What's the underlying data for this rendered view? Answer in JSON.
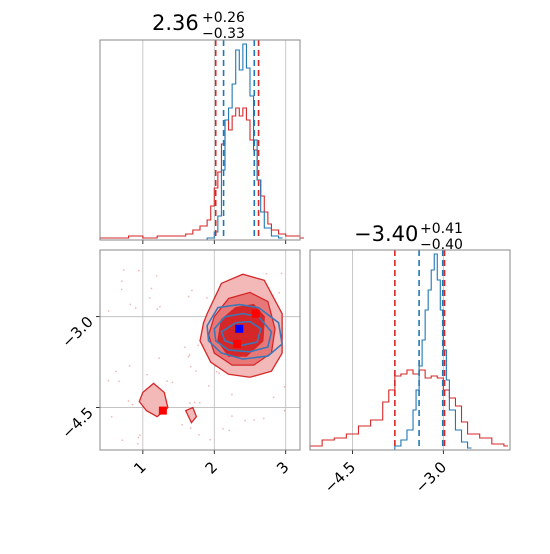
{
  "colors": {
    "sample_a": "#d62728",
    "sample_b": "#1f77b4",
    "marker_a": "#ff0000",
    "marker_b": "#0000ff",
    "axis": "#888888",
    "grid": "#bbbbbb",
    "text": "#000000"
  },
  "chart_data": [
    {
      "panel": "marginal-param-1",
      "type": "histogram",
      "title_main": "2.36",
      "title_sup": "+0.26",
      "title_sub": "−0.33",
      "xlim": [
        0.4,
        3.2
      ],
      "ticks": [
        1,
        2,
        3
      ],
      "show_tick_labels": false,
      "grid": true,
      "quantiles": [
        {
          "series": "red",
          "values": [
            2.02,
            2.62
          ]
        },
        {
          "series": "blue",
          "values": [
            2.13,
            2.56
          ]
        }
      ],
      "series": [
        {
          "color": "red",
          "x": [
            0.4,
            0.6,
            0.8,
            1.0,
            1.2,
            1.4,
            1.6,
            1.7,
            1.8,
            1.9,
            1.95,
            2.0,
            2.05,
            2.1,
            2.15,
            2.2,
            2.25,
            2.3,
            2.35,
            2.4,
            2.45,
            2.5,
            2.55,
            2.6,
            2.65,
            2.7,
            2.75,
            2.8,
            2.9,
            3.0,
            3.2
          ],
          "y": [
            0.01,
            0.01,
            0.02,
            0.01,
            0.02,
            0.02,
            0.03,
            0.05,
            0.07,
            0.1,
            0.17,
            0.26,
            0.34,
            0.48,
            0.6,
            0.55,
            0.62,
            0.66,
            0.62,
            0.66,
            0.6,
            0.5,
            0.45,
            0.3,
            0.22,
            0.14,
            0.08,
            0.05,
            0.03,
            0.02,
            0.01
          ]
        },
        {
          "color": "blue",
          "x": [
            1.9,
            2.0,
            2.05,
            2.1,
            2.15,
            2.2,
            2.25,
            2.3,
            2.35,
            2.4,
            2.45,
            2.5,
            2.55,
            2.6,
            2.65,
            2.7,
            2.8,
            2.9
          ],
          "y": [
            0.01,
            0.04,
            0.12,
            0.35,
            0.6,
            0.66,
            0.78,
            0.95,
            0.85,
            0.98,
            0.86,
            0.72,
            0.5,
            0.3,
            0.14,
            0.06,
            0.02,
            0.01
          ]
        }
      ]
    },
    {
      "panel": "joint-param-1-param-2",
      "type": "contour",
      "xlim": [
        0.4,
        3.2
      ],
      "ylim": [
        -5.2,
        -1.9
      ],
      "xticks": [
        "1",
        "2",
        "3"
      ],
      "yticks": [
        "−3.0",
        "−4.5"
      ],
      "ytick_values": [
        -3.0,
        -4.5
      ],
      "grid": true,
      "red_contours": [
        {
          "level": "outer",
          "x": [
            1.9,
            2.1,
            2.4,
            2.7,
            2.95,
            2.95,
            2.8,
            2.5,
            2.2,
            1.95,
            1.8,
            1.85,
            1.9
          ],
          "y": [
            -2.95,
            -2.45,
            -2.3,
            -2.4,
            -2.95,
            -3.6,
            -3.9,
            -4.0,
            -3.95,
            -3.75,
            -3.4,
            -3.1,
            -2.95
          ]
        },
        {
          "level": "middle",
          "x": [
            2.0,
            2.2,
            2.5,
            2.75,
            2.85,
            2.8,
            2.55,
            2.25,
            2.0,
            1.92,
            2.0
          ],
          "y": [
            -3.0,
            -2.7,
            -2.6,
            -2.75,
            -3.2,
            -3.6,
            -3.8,
            -3.8,
            -3.6,
            -3.3,
            -3.0
          ]
        },
        {
          "level": "inner",
          "x": [
            2.1,
            2.3,
            2.55,
            2.7,
            2.68,
            2.45,
            2.2,
            2.05,
            2.1
          ],
          "y": [
            -3.05,
            -2.85,
            -2.8,
            -3.0,
            -3.4,
            -3.65,
            -3.65,
            -3.4,
            -3.05
          ]
        },
        {
          "level": "island",
          "x": [
            1.0,
            1.15,
            1.3,
            1.35,
            1.2,
            1.05,
            0.95,
            1.0
          ],
          "y": [
            -4.25,
            -4.1,
            -4.25,
            -4.5,
            -4.65,
            -4.55,
            -4.4,
            -4.25
          ]
        },
        {
          "level": "island",
          "x": [
            1.6,
            1.7,
            1.75,
            1.68,
            1.6
          ],
          "y": [
            -4.55,
            -4.5,
            -4.65,
            -4.75,
            -4.55
          ]
        }
      ],
      "blue_contours": [
        {
          "x": [
            1.9,
            2.05,
            2.35,
            2.62,
            2.9,
            2.95,
            2.75,
            2.4,
            2.1,
            1.92,
            1.9
          ],
          "y": [
            -3.15,
            -2.85,
            -2.8,
            -2.85,
            -3.1,
            -3.45,
            -3.65,
            -3.7,
            -3.6,
            -3.4,
            -3.15
          ]
        },
        {
          "x": [
            2.0,
            2.15,
            2.4,
            2.62,
            2.8,
            2.75,
            2.5,
            2.2,
            2.02,
            2.0
          ],
          "y": [
            -3.2,
            -3.0,
            -2.95,
            -3.0,
            -3.25,
            -3.5,
            -3.58,
            -3.55,
            -3.4,
            -3.2
          ]
        },
        {
          "x": [
            2.1,
            2.3,
            2.5,
            2.65,
            2.6,
            2.35,
            2.15,
            2.1
          ],
          "y": [
            -3.25,
            -3.1,
            -3.08,
            -3.2,
            -3.42,
            -3.48,
            -3.4,
            -3.25
          ]
        }
      ],
      "markers": [
        {
          "color": "red",
          "x": 2.58,
          "y": -2.95
        },
        {
          "color": "red",
          "x": 2.32,
          "y": -3.45
        },
        {
          "color": "red",
          "x": 1.28,
          "y": -4.55
        },
        {
          "color": "blue",
          "x": 2.35,
          "y": -3.2
        }
      ]
    },
    {
      "panel": "marginal-param-2",
      "type": "histogram",
      "title_main": "−3.40",
      "title_sup": "+0.41",
      "title_sub": "−0.40",
      "xlim": [
        -5.2,
        -1.9
      ],
      "ticks": [
        "−4.5",
        "−3.0"
      ],
      "tick_values": [
        -4.5,
        -3.0
      ],
      "grid": true,
      "quantiles": [
        {
          "series": "red",
          "values": [
            -3.8,
            -2.98
          ]
        },
        {
          "series": "blue",
          "values": [
            -3.4,
            -3.01
          ]
        }
      ],
      "series": [
        {
          "color": "red",
          "x": [
            -5.2,
            -5.0,
            -4.8,
            -4.6,
            -4.4,
            -4.2,
            -4.0,
            -3.9,
            -3.8,
            -3.7,
            -3.6,
            -3.5,
            -3.4,
            -3.3,
            -3.2,
            -3.1,
            -3.0,
            -2.9,
            -2.8,
            -2.7,
            -2.6,
            -2.4,
            -2.2,
            -2.0
          ],
          "y": [
            0.02,
            0.05,
            0.06,
            0.08,
            0.12,
            0.15,
            0.24,
            0.3,
            0.37,
            0.38,
            0.4,
            0.38,
            0.4,
            0.36,
            0.37,
            0.36,
            0.3,
            0.26,
            0.22,
            0.14,
            0.08,
            0.06,
            0.03,
            0.02
          ]
        },
        {
          "color": "blue",
          "x": [
            -3.8,
            -3.7,
            -3.6,
            -3.5,
            -3.45,
            -3.4,
            -3.35,
            -3.3,
            -3.25,
            -3.2,
            -3.15,
            -3.1,
            -3.05,
            -3.0,
            -2.95,
            -2.9,
            -2.8,
            -2.7,
            -2.6
          ],
          "y": [
            0.02,
            0.05,
            0.1,
            0.2,
            0.3,
            0.42,
            0.55,
            0.7,
            0.8,
            0.9,
            0.98,
            0.85,
            0.7,
            0.5,
            0.35,
            0.2,
            0.1,
            0.04,
            0.01
          ]
        }
      ]
    }
  ]
}
